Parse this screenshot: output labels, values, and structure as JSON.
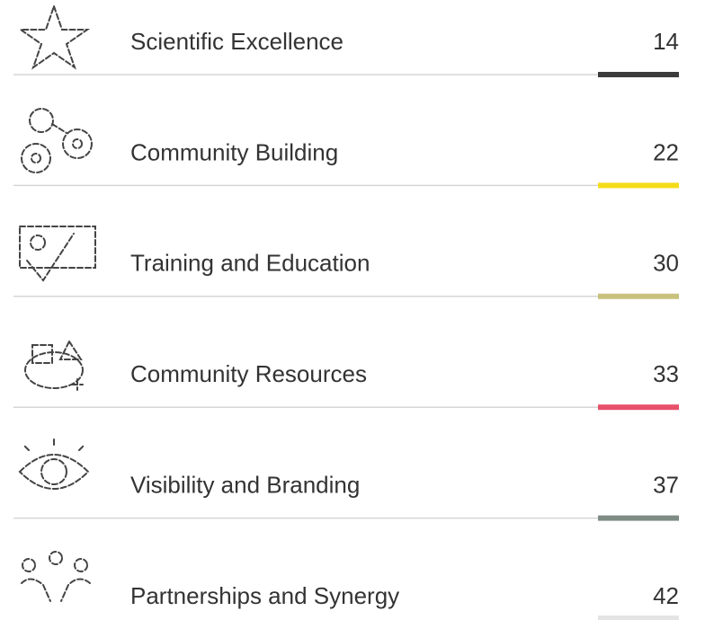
{
  "items": [
    {
      "label": "Scientific Excellence",
      "value": 14,
      "color": "#3b3b3b"
    },
    {
      "label": "Community Building",
      "value": 22,
      "color": "#f5dc1a"
    },
    {
      "label": "Training and Education",
      "value": 30,
      "color": "#c9c27e"
    },
    {
      "label": "Community Resources",
      "value": 33,
      "color": "#e8506a"
    },
    {
      "label": "Visibility and Branding",
      "value": 37,
      "color": "#7f8c86"
    },
    {
      "label": "Partnerships and Synergy",
      "value": 42,
      "color": "#e4e4e4"
    }
  ]
}
